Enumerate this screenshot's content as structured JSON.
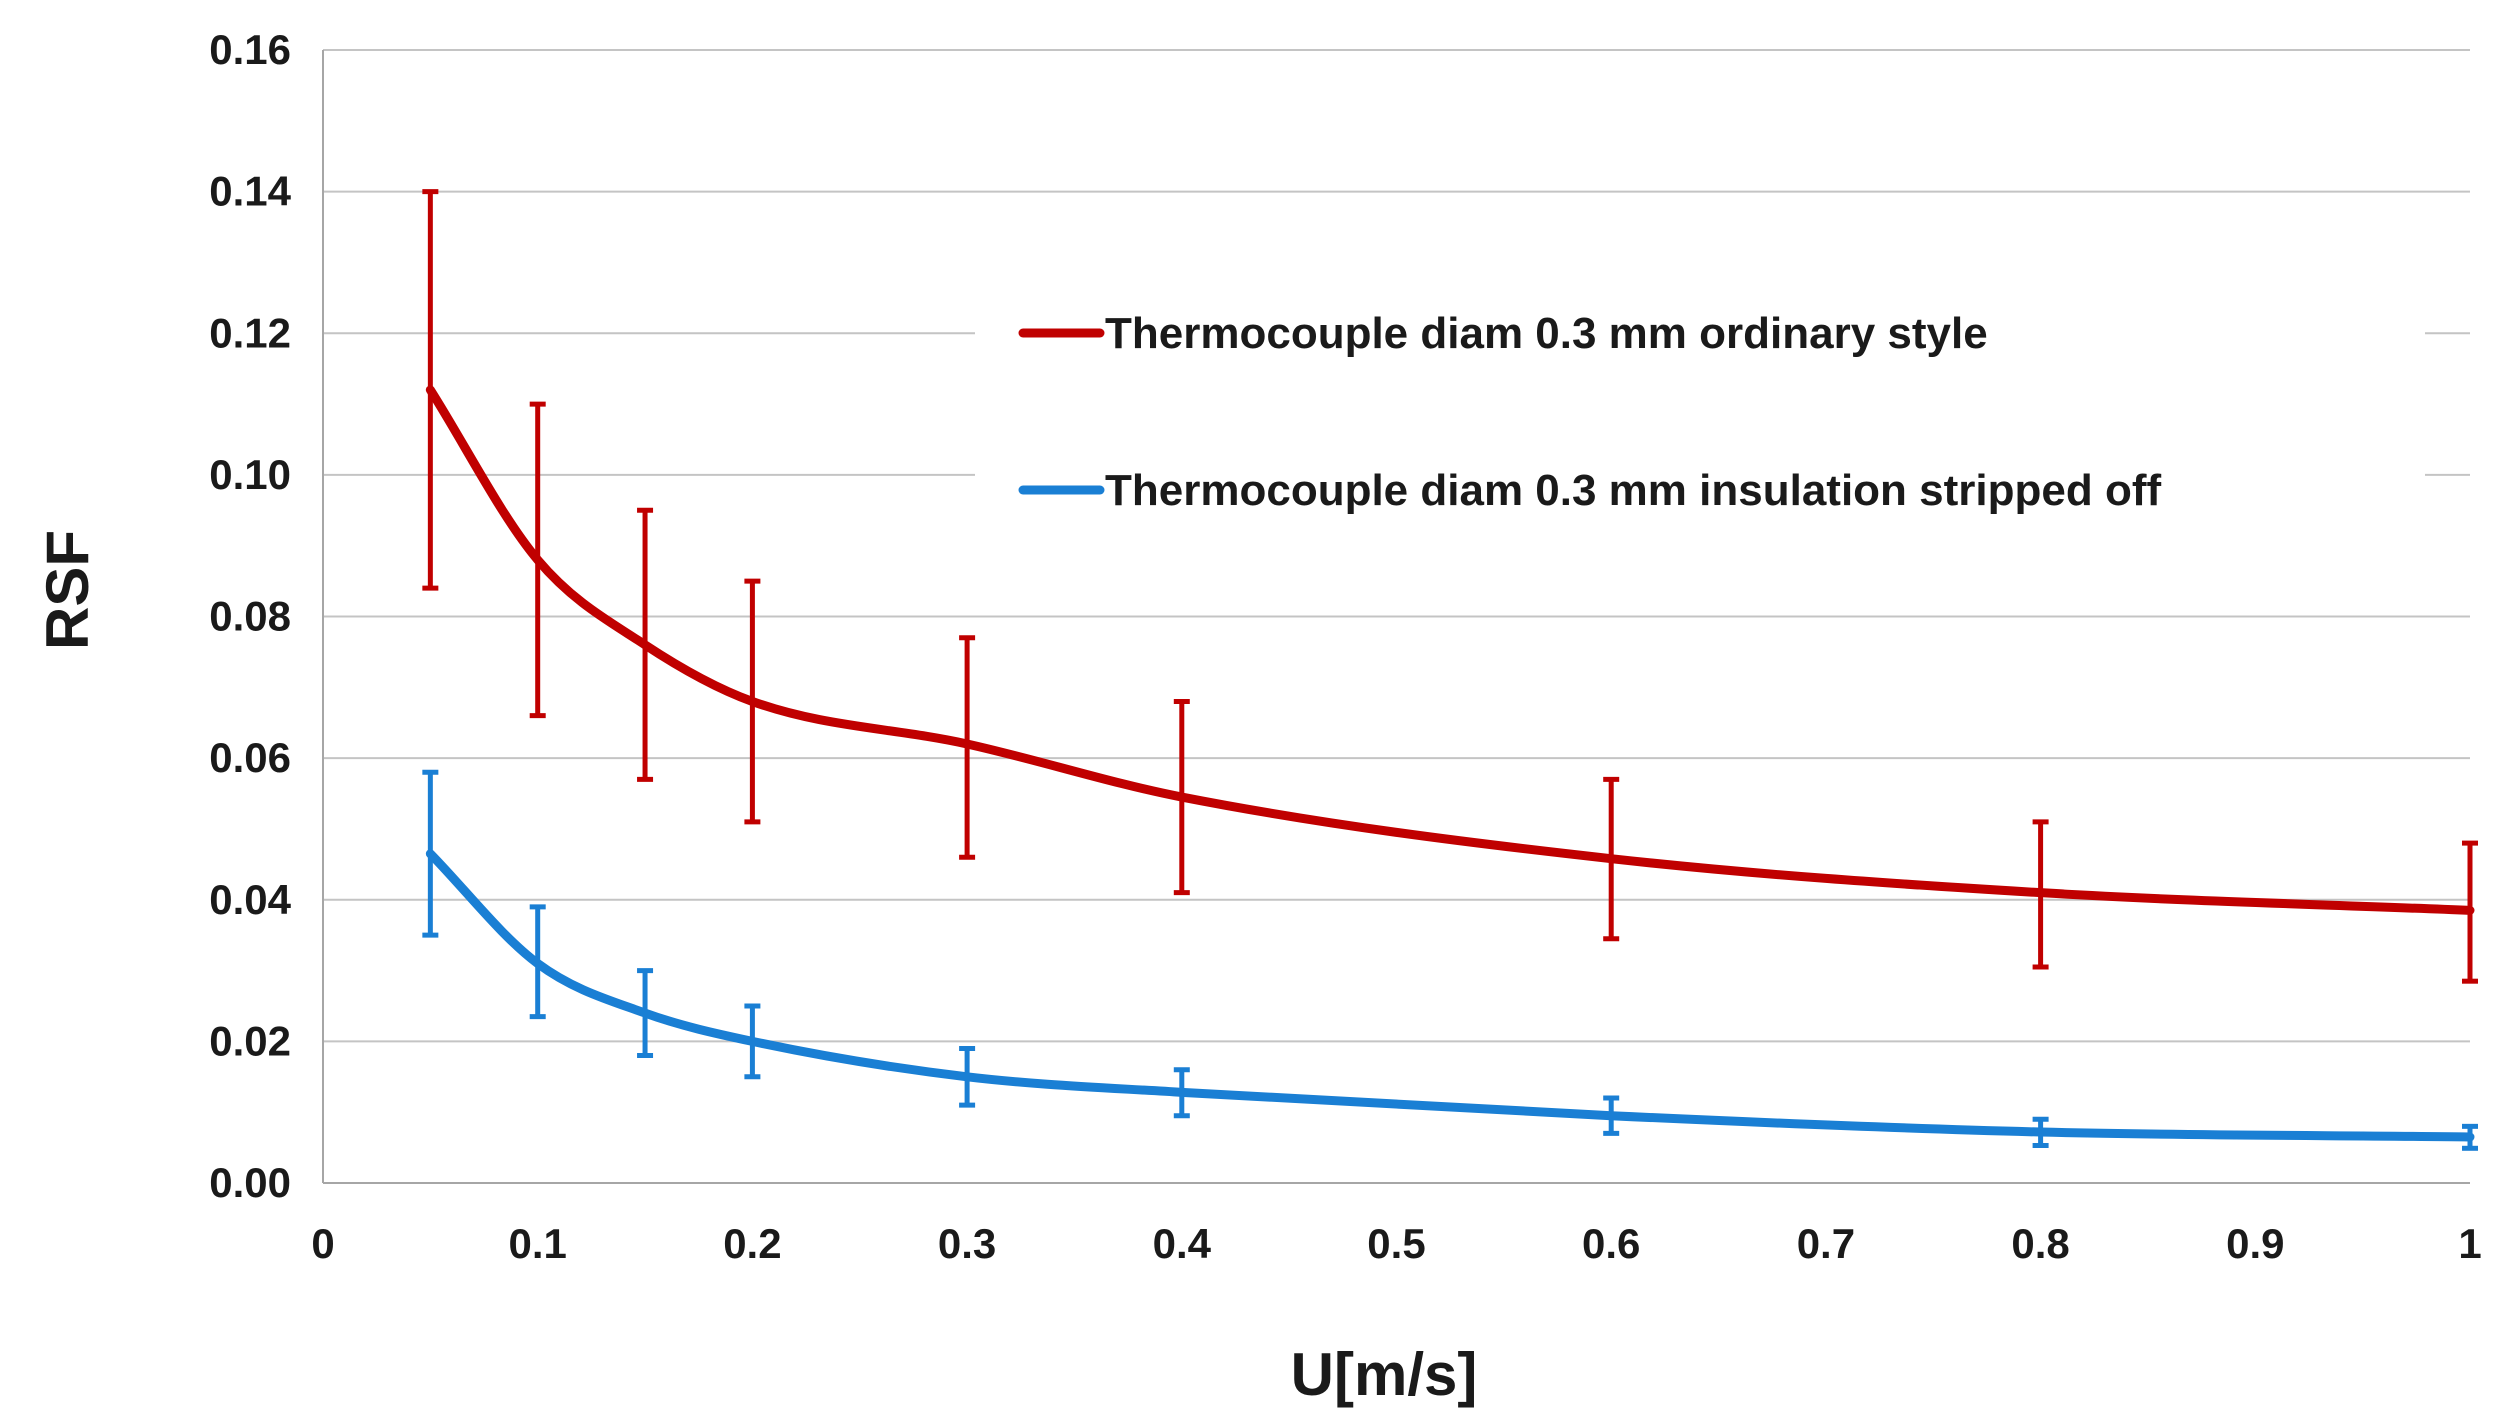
{
  "chart_data": {
    "type": "line",
    "title": "",
    "xlabel": "U[m/s]",
    "ylabel": "RSF",
    "xlim": [
      0,
      1
    ],
    "ylim": [
      0,
      0.16
    ],
    "grid": true,
    "legend_position": "upper-right",
    "x_ticks": [
      {
        "value": 0,
        "label": "0"
      },
      {
        "value": 0.1,
        "label": "0.1"
      },
      {
        "value": 0.2,
        "label": "0.2"
      },
      {
        "value": 0.3,
        "label": "0.3"
      },
      {
        "value": 0.4,
        "label": "0.4"
      },
      {
        "value": 0.5,
        "label": "0.5"
      },
      {
        "value": 0.6,
        "label": "0.6"
      },
      {
        "value": 0.7,
        "label": "0.7"
      },
      {
        "value": 0.8,
        "label": "0.8"
      },
      {
        "value": 0.9,
        "label": "0.9"
      },
      {
        "value": 1,
        "label": "1"
      }
    ],
    "y_ticks": [
      {
        "value": 0,
        "label": "0.00"
      },
      {
        "value": 0.02,
        "label": "0.02"
      },
      {
        "value": 0.04,
        "label": "0.04"
      },
      {
        "value": 0.06,
        "label": "0.06"
      },
      {
        "value": 0.08,
        "label": "0.08"
      },
      {
        "value": 0.1,
        "label": "0.10"
      },
      {
        "value": 0.12,
        "label": "0.12"
      },
      {
        "value": 0.14,
        "label": "0.14"
      },
      {
        "value": 0.16,
        "label": "0.16"
      }
    ],
    "x": [
      0.05,
      0.1,
      0.15,
      0.2,
      0.3,
      0.4,
      0.6,
      0.8,
      1.0
    ],
    "series": [
      {
        "name": "Thermocouple diam 0.3 mm ordinary style",
        "color": "#c00000",
        "values": [
          0.112,
          0.088,
          0.076,
          0.068,
          0.062,
          0.0545,
          0.0458,
          0.041,
          0.0385
        ],
        "error_low": [
          0.084,
          0.066,
          0.057,
          0.051,
          0.046,
          0.041,
          0.0345,
          0.0305,
          0.0285
        ],
        "error_high": [
          0.14,
          0.11,
          0.095,
          0.085,
          0.077,
          0.068,
          0.057,
          0.051,
          0.048
        ]
      },
      {
        "name": "Thermocouple diam 0.3 mm insulation stripped off",
        "color": "#1a7fd4",
        "values": [
          0.0465,
          0.031,
          0.024,
          0.02,
          0.015,
          0.0128,
          0.0095,
          0.0072,
          0.0065
        ],
        "error_low": [
          0.035,
          0.0235,
          0.018,
          0.015,
          0.011,
          0.0095,
          0.007,
          0.0053,
          0.0049
        ],
        "error_high": [
          0.058,
          0.039,
          0.03,
          0.025,
          0.019,
          0.016,
          0.012,
          0.009,
          0.008
        ]
      }
    ]
  }
}
